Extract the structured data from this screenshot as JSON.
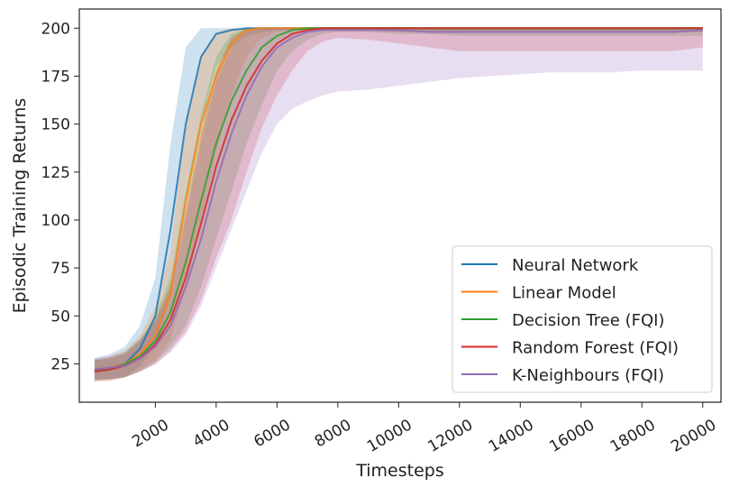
{
  "chart_data": {
    "type": "line",
    "title": "",
    "xlabel": "Timesteps",
    "ylabel": "Episodic Training Returns",
    "xlim": [
      -500,
      20600
    ],
    "ylim": [
      5,
      210
    ],
    "x_ticks": [
      2000,
      4000,
      6000,
      8000,
      10000,
      12000,
      14000,
      16000,
      18000,
      20000
    ],
    "x_tick_labels": [
      "2000",
      "4000",
      "6000",
      "8000",
      "10000",
      "12000",
      "14000",
      "16000",
      "18000",
      "20000"
    ],
    "y_ticks": [
      25,
      50,
      75,
      100,
      125,
      150,
      175,
      200
    ],
    "y_tick_labels": [
      "25",
      "50",
      "75",
      "100",
      "125",
      "150",
      "175",
      "200"
    ],
    "grid": false,
    "legend_position": "bottom-right",
    "x": [
      0,
      500,
      1000,
      1500,
      2000,
      2500,
      3000,
      3500,
      4000,
      4500,
      5000,
      5500,
      6000,
      6500,
      7000,
      7500,
      8000,
      9000,
      10000,
      11000,
      12000,
      13000,
      14000,
      15000,
      16000,
      17000,
      18000,
      19000,
      20000
    ],
    "series": [
      {
        "name": "Neural Network",
        "color": "#1f77b4",
        "values": [
          22,
          23,
          25,
          33,
          50,
          95,
          150,
          185,
          197,
          199,
          200,
          200,
          200,
          200,
          200,
          200,
          200,
          200,
          200,
          200,
          200,
          200,
          200,
          200,
          200,
          200,
          200,
          200,
          200
        ],
        "band": [
          [
            17,
            28
          ],
          [
            17,
            30
          ],
          [
            18,
            34
          ],
          [
            24,
            45
          ],
          [
            35,
            70
          ],
          [
            60,
            140
          ],
          [
            110,
            190
          ],
          [
            150,
            200
          ],
          [
            180,
            200
          ],
          [
            190,
            200
          ],
          [
            196,
            200
          ],
          [
            198,
            200
          ],
          [
            199,
            200
          ],
          [
            199,
            200
          ],
          [
            199,
            200
          ],
          [
            199,
            200
          ],
          [
            199,
            200
          ],
          [
            199,
            200
          ],
          [
            198,
            200
          ],
          [
            198,
            200
          ],
          [
            198,
            200
          ],
          [
            198,
            200
          ],
          [
            198,
            200
          ],
          [
            198,
            200
          ],
          [
            198,
            200
          ],
          [
            198,
            200
          ],
          [
            198,
            200
          ],
          [
            198,
            200
          ],
          [
            198,
            200
          ]
        ]
      },
      {
        "name": "Linear Model",
        "color": "#ff7f0e",
        "values": [
          21,
          23,
          25,
          30,
          40,
          62,
          110,
          150,
          175,
          192,
          199,
          200,
          200,
          200,
          200,
          200,
          200,
          200,
          200,
          200,
          200,
          200,
          200,
          200,
          200,
          200,
          200,
          200,
          200
        ],
        "band": [
          [
            16,
            27
          ],
          [
            17,
            29
          ],
          [
            18,
            32
          ],
          [
            22,
            40
          ],
          [
            27,
            55
          ],
          [
            38,
            85
          ],
          [
            65,
            150
          ],
          [
            100,
            185
          ],
          [
            135,
            198
          ],
          [
            165,
            200
          ],
          [
            185,
            200
          ],
          [
            195,
            200
          ],
          [
            198,
            200
          ],
          [
            199,
            200
          ],
          [
            199,
            200
          ],
          [
            199,
            200
          ],
          [
            199,
            200
          ],
          [
            199,
            200
          ],
          [
            198,
            200
          ],
          [
            198,
            200
          ],
          [
            198,
            200
          ],
          [
            198,
            200
          ],
          [
            198,
            200
          ],
          [
            198,
            200
          ],
          [
            198,
            200
          ],
          [
            198,
            200
          ],
          [
            198,
            200
          ],
          [
            198,
            200
          ],
          [
            198,
            200
          ]
        ]
      },
      {
        "name": "Decision Tree (FQI)",
        "color": "#2ca02c",
        "values": [
          21,
          22,
          25,
          29,
          37,
          52,
          78,
          110,
          140,
          162,
          178,
          190,
          196,
          199,
          200,
          200,
          200,
          200,
          200,
          200,
          200,
          200,
          200,
          200,
          200,
          200,
          200,
          200,
          200
        ],
        "band": [
          [
            16,
            27
          ],
          [
            17,
            28
          ],
          [
            18,
            31
          ],
          [
            21,
            38
          ],
          [
            26,
            50
          ],
          [
            34,
            70
          ],
          [
            45,
            115
          ],
          [
            65,
            155
          ],
          [
            90,
            185
          ],
          [
            115,
            197
          ],
          [
            140,
            200
          ],
          [
            160,
            200
          ],
          [
            178,
            200
          ],
          [
            188,
            200
          ],
          [
            194,
            200
          ],
          [
            197,
            200
          ],
          [
            198,
            200
          ],
          [
            198,
            200
          ],
          [
            197,
            200
          ],
          [
            197,
            200
          ],
          [
            196,
            200
          ],
          [
            196,
            200
          ],
          [
            196,
            200
          ],
          [
            196,
            200
          ],
          [
            196,
            200
          ],
          [
            196,
            200
          ],
          [
            196,
            200
          ],
          [
            196,
            200
          ],
          [
            196,
            200
          ]
        ]
      },
      {
        "name": "Random Forest (FQI)",
        "color": "#d62728",
        "values": [
          21,
          22,
          24,
          28,
          35,
          48,
          70,
          98,
          128,
          152,
          170,
          183,
          192,
          197,
          199,
          200,
          200,
          200,
          200,
          200,
          200,
          200,
          200,
          200,
          200,
          200,
          200,
          200,
          200
        ],
        "band": [
          [
            16,
            27
          ],
          [
            16,
            28
          ],
          [
            18,
            30
          ],
          [
            21,
            37
          ],
          [
            25,
            48
          ],
          [
            32,
            66
          ],
          [
            42,
            105
          ],
          [
            58,
            145
          ],
          [
            80,
            178
          ],
          [
            100,
            195
          ],
          [
            125,
            200
          ],
          [
            148,
            200
          ],
          [
            165,
            200
          ],
          [
            178,
            200
          ],
          [
            188,
            200
          ],
          [
            193,
            200
          ],
          [
            195,
            200
          ],
          [
            194,
            200
          ],
          [
            192,
            200
          ],
          [
            190,
            200
          ],
          [
            188,
            200
          ],
          [
            188,
            200
          ],
          [
            188,
            200
          ],
          [
            188,
            200
          ],
          [
            188,
            200
          ],
          [
            188,
            200
          ],
          [
            188,
            200
          ],
          [
            188,
            200
          ],
          [
            190,
            200
          ]
        ]
      },
      {
        "name": "K-Neighbours (FQI)",
        "color": "#9467bd",
        "values": [
          22,
          23,
          24,
          28,
          34,
          45,
          65,
          90,
          120,
          145,
          165,
          180,
          190,
          195,
          198,
          199,
          199,
          199,
          199,
          198,
          198,
          198,
          198,
          198,
          198,
          198,
          198,
          198,
          199
        ],
        "band": [
          [
            17,
            28
          ],
          [
            17,
            29
          ],
          [
            18,
            31
          ],
          [
            21,
            38
          ],
          [
            25,
            47
          ],
          [
            31,
            62
          ],
          [
            40,
            100
          ],
          [
            55,
            140
          ],
          [
            75,
            172
          ],
          [
            95,
            190
          ],
          [
            115,
            198
          ],
          [
            135,
            200
          ],
          [
            150,
            200
          ],
          [
            158,
            200
          ],
          [
            162,
            200
          ],
          [
            165,
            200
          ],
          [
            167,
            200
          ],
          [
            168,
            200
          ],
          [
            170,
            200
          ],
          [
            172,
            200
          ],
          [
            174,
            200
          ],
          [
            175,
            200
          ],
          [
            176,
            200
          ],
          [
            177,
            200
          ],
          [
            177,
            200
          ],
          [
            177,
            200
          ],
          [
            178,
            200
          ],
          [
            178,
            200
          ],
          [
            178,
            200
          ]
        ]
      }
    ]
  }
}
